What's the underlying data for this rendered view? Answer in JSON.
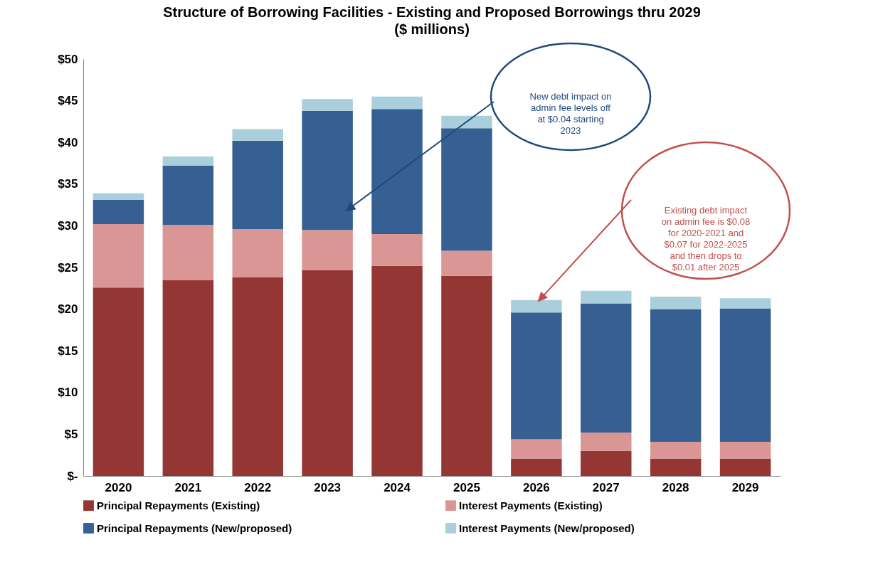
{
  "chart_data": {
    "type": "bar",
    "title": "Structure of Borrowing Facilities - Existing and Proposed Borrowings thru 2029",
    "subtitle": "($ millions)",
    "categories": [
      "2020",
      "2021",
      "2022",
      "2023",
      "2024",
      "2025",
      "2026",
      "2027",
      "2028",
      "2029"
    ],
    "stacked": true,
    "series": [
      {
        "name": "Principal Repayments (Existing)",
        "color": "#943634",
        "values": [
          22.6,
          23.5,
          23.8,
          24.7,
          25.2,
          24.0,
          2.1,
          3.0,
          2.1,
          2.1
        ]
      },
      {
        "name": "Interest Payments (Existing)",
        "color": "#d99694",
        "values": [
          7.6,
          6.6,
          5.8,
          4.8,
          3.8,
          3.0,
          2.3,
          2.2,
          2.0,
          2.0
        ]
      },
      {
        "name": "Principal Repayments (New/proposed)",
        "color": "#366092",
        "values": [
          2.9,
          7.1,
          10.6,
          14.3,
          15.0,
          14.7,
          15.2,
          15.5,
          15.9,
          16.0
        ]
      },
      {
        "name": "Interest Payments (New/proposed)",
        "color": "#a9cfdc",
        "values": [
          0.8,
          1.1,
          1.4,
          1.4,
          1.5,
          1.5,
          1.5,
          1.5,
          1.5,
          1.2
        ]
      }
    ],
    "ylim": [
      0,
      50
    ],
    "yticks": [
      {
        "value": 0,
        "label": "$-"
      },
      {
        "value": 5,
        "label": "$5"
      },
      {
        "value": 10,
        "label": "$10"
      },
      {
        "value": 15,
        "label": "$15"
      },
      {
        "value": 20,
        "label": "$20"
      },
      {
        "value": 25,
        "label": "$25"
      },
      {
        "value": 30,
        "label": "$30"
      },
      {
        "value": 35,
        "label": "$35"
      },
      {
        "value": 40,
        "label": "$40"
      },
      {
        "value": 45,
        "label": "$45"
      },
      {
        "value": 50,
        "label": "$50"
      }
    ],
    "grid": false,
    "legend": "bottom",
    "annotations": [
      "New debt impact on admin fee levels off at $0.04 starting 2023",
      "Existing debt impact on admin fee is $0.08 for 2020-2021 and $0.07 for 2022-2025 and then drops to $0.01 after 2025"
    ]
  }
}
